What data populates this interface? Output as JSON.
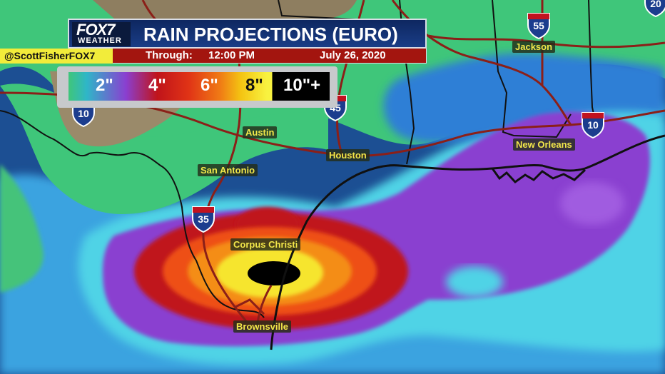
{
  "header": {
    "logo_main": "FOX7",
    "logo_sub": "WEATHER",
    "title": "RAIN PROJECTIONS (EURO)",
    "through_label": "Through:",
    "through_time": "12:00 PM",
    "through_date": "July 26, 2020",
    "handle": "@ScottFisherFOX7"
  },
  "legend": {
    "labels": [
      "2\"",
      "4\"",
      "6\"",
      "8\"",
      "10\"+"
    ],
    "colors": {
      "light": "#3fc67a",
      "two_in": "#8a3fd0",
      "four_in": "#c0141a",
      "six_in": "#f07a15",
      "eight_in": "#f8f240",
      "ten_in": "#000000"
    }
  },
  "cities": {
    "jackson": "Jackson",
    "austin": "Austin",
    "houston": "Houston",
    "san_antonio": "San Antonio",
    "new_orleans": "New Orleans",
    "corpus_christi": "Corpus Christi",
    "brownsville": "Brownsville"
  },
  "interstates": {
    "i55": "55",
    "i45": "45",
    "i10_east": "10",
    "i10_west": "10",
    "i35": "35",
    "i20": "20"
  }
}
